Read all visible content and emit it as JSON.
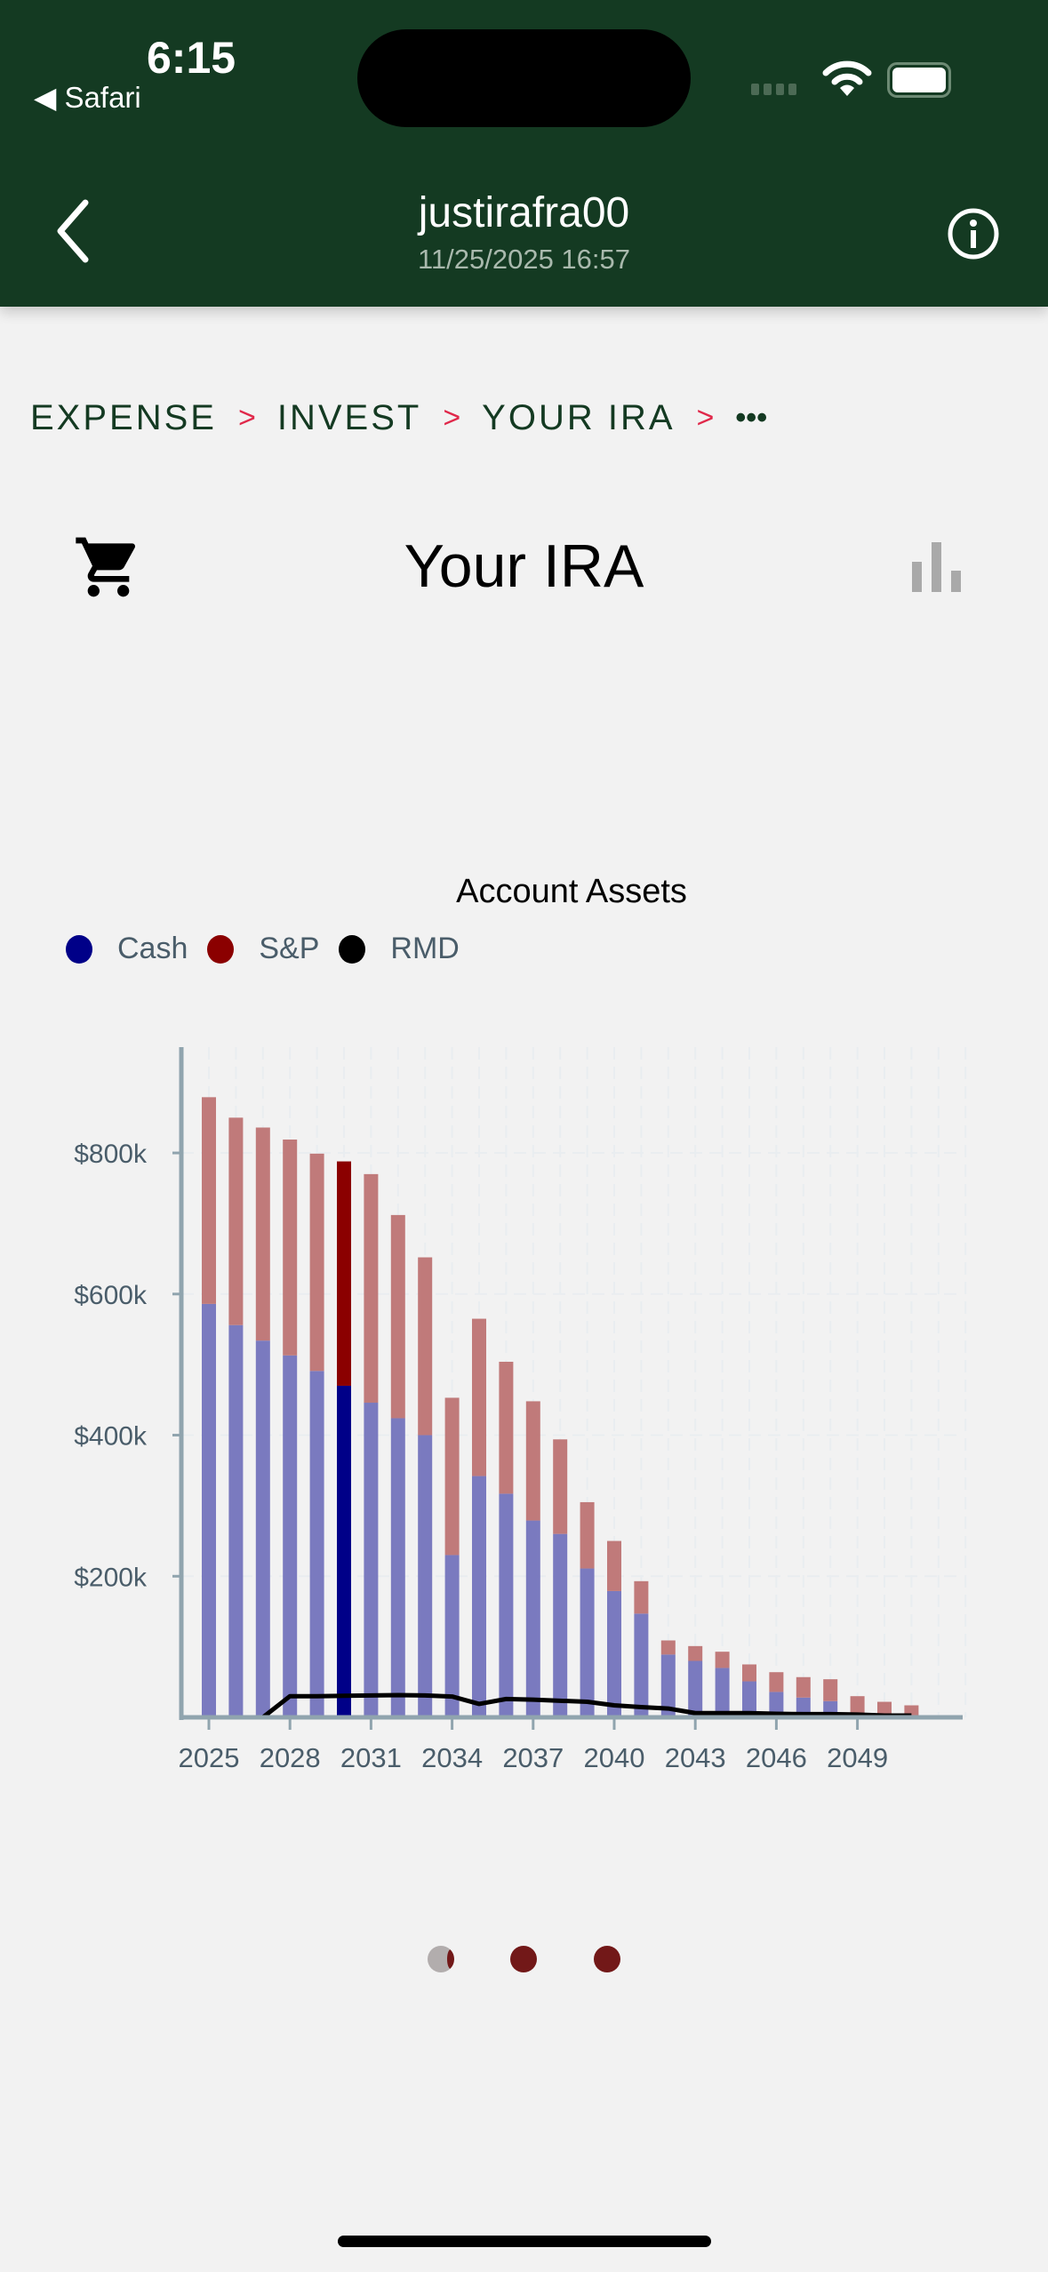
{
  "status_bar": {
    "time": "6:15",
    "back_app": "Safari"
  },
  "header": {
    "title": "justirafra00",
    "subtitle": "11/25/2025 16:57"
  },
  "breadcrumb": {
    "items": [
      "EXPENSE",
      "INVEST",
      "YOUR IRA"
    ],
    "separator": ">",
    "more": "•••"
  },
  "page": {
    "title": "Your IRA",
    "left_icon": "cart-icon",
    "right_icon": "bar-chart-icon"
  },
  "colors": {
    "header_bg": "#143a22",
    "cash": "#000088",
    "sp": "#8b0000",
    "rmd": "#000000",
    "separator": "#e0284a",
    "pager_active": "#721818"
  },
  "chart_data": {
    "type": "bar",
    "stacked": true,
    "title": "Account Assets",
    "legend": {
      "placement": "top-left",
      "entries": [
        "Cash",
        "S&P",
        "RMD"
      ]
    },
    "x": [
      2025,
      2026,
      2027,
      2028,
      2029,
      2030,
      2031,
      2032,
      2033,
      2034,
      2035,
      2036,
      2037,
      2038,
      2039,
      2040,
      2041,
      2042,
      2043,
      2044,
      2045,
      2046,
      2047,
      2048,
      2049,
      2050,
      2051
    ],
    "xticks": [
      "2025",
      "2028",
      "2031",
      "2034",
      "2037",
      "2040",
      "2043",
      "2046",
      "2049"
    ],
    "yticks": [
      "$200k",
      "$400k",
      "$600k",
      "$800k"
    ],
    "ylim": [
      0,
      950000
    ],
    "grid": true,
    "highlighted_x": 2030,
    "series": [
      {
        "name": "Cash",
        "kind": "bar",
        "values": [
          586000,
          556000,
          534000,
          513000,
          491000,
          470000,
          446000,
          424000,
          400000,
          230000,
          342000,
          317000,
          279000,
          260000,
          211000,
          179000,
          147000,
          89000,
          80000,
          70000,
          51000,
          36000,
          28000,
          23000,
          1000,
          0,
          0
        ]
      },
      {
        "name": "S&P",
        "kind": "bar",
        "values": [
          293000,
          294000,
          302000,
          306000,
          308000,
          318000,
          324000,
          288000,
          252000,
          223000,
          223000,
          187000,
          169000,
          134000,
          94000,
          71000,
          46000,
          20000,
          21000,
          23000,
          24000,
          28000,
          29000,
          31000,
          29000,
          22000,
          17000
        ]
      },
      {
        "name": "RMD",
        "kind": "line",
        "values": [
          0,
          0,
          0,
          30000,
          30000,
          30500,
          31000,
          31500,
          31000,
          29500,
          19000,
          26000,
          25000,
          23500,
          22000,
          17000,
          14500,
          12500,
          6000,
          6000,
          6000,
          5000,
          4500,
          4500,
          4000,
          2500,
          2500
        ]
      }
    ]
  },
  "pager": {
    "count": 3,
    "active": 0
  }
}
